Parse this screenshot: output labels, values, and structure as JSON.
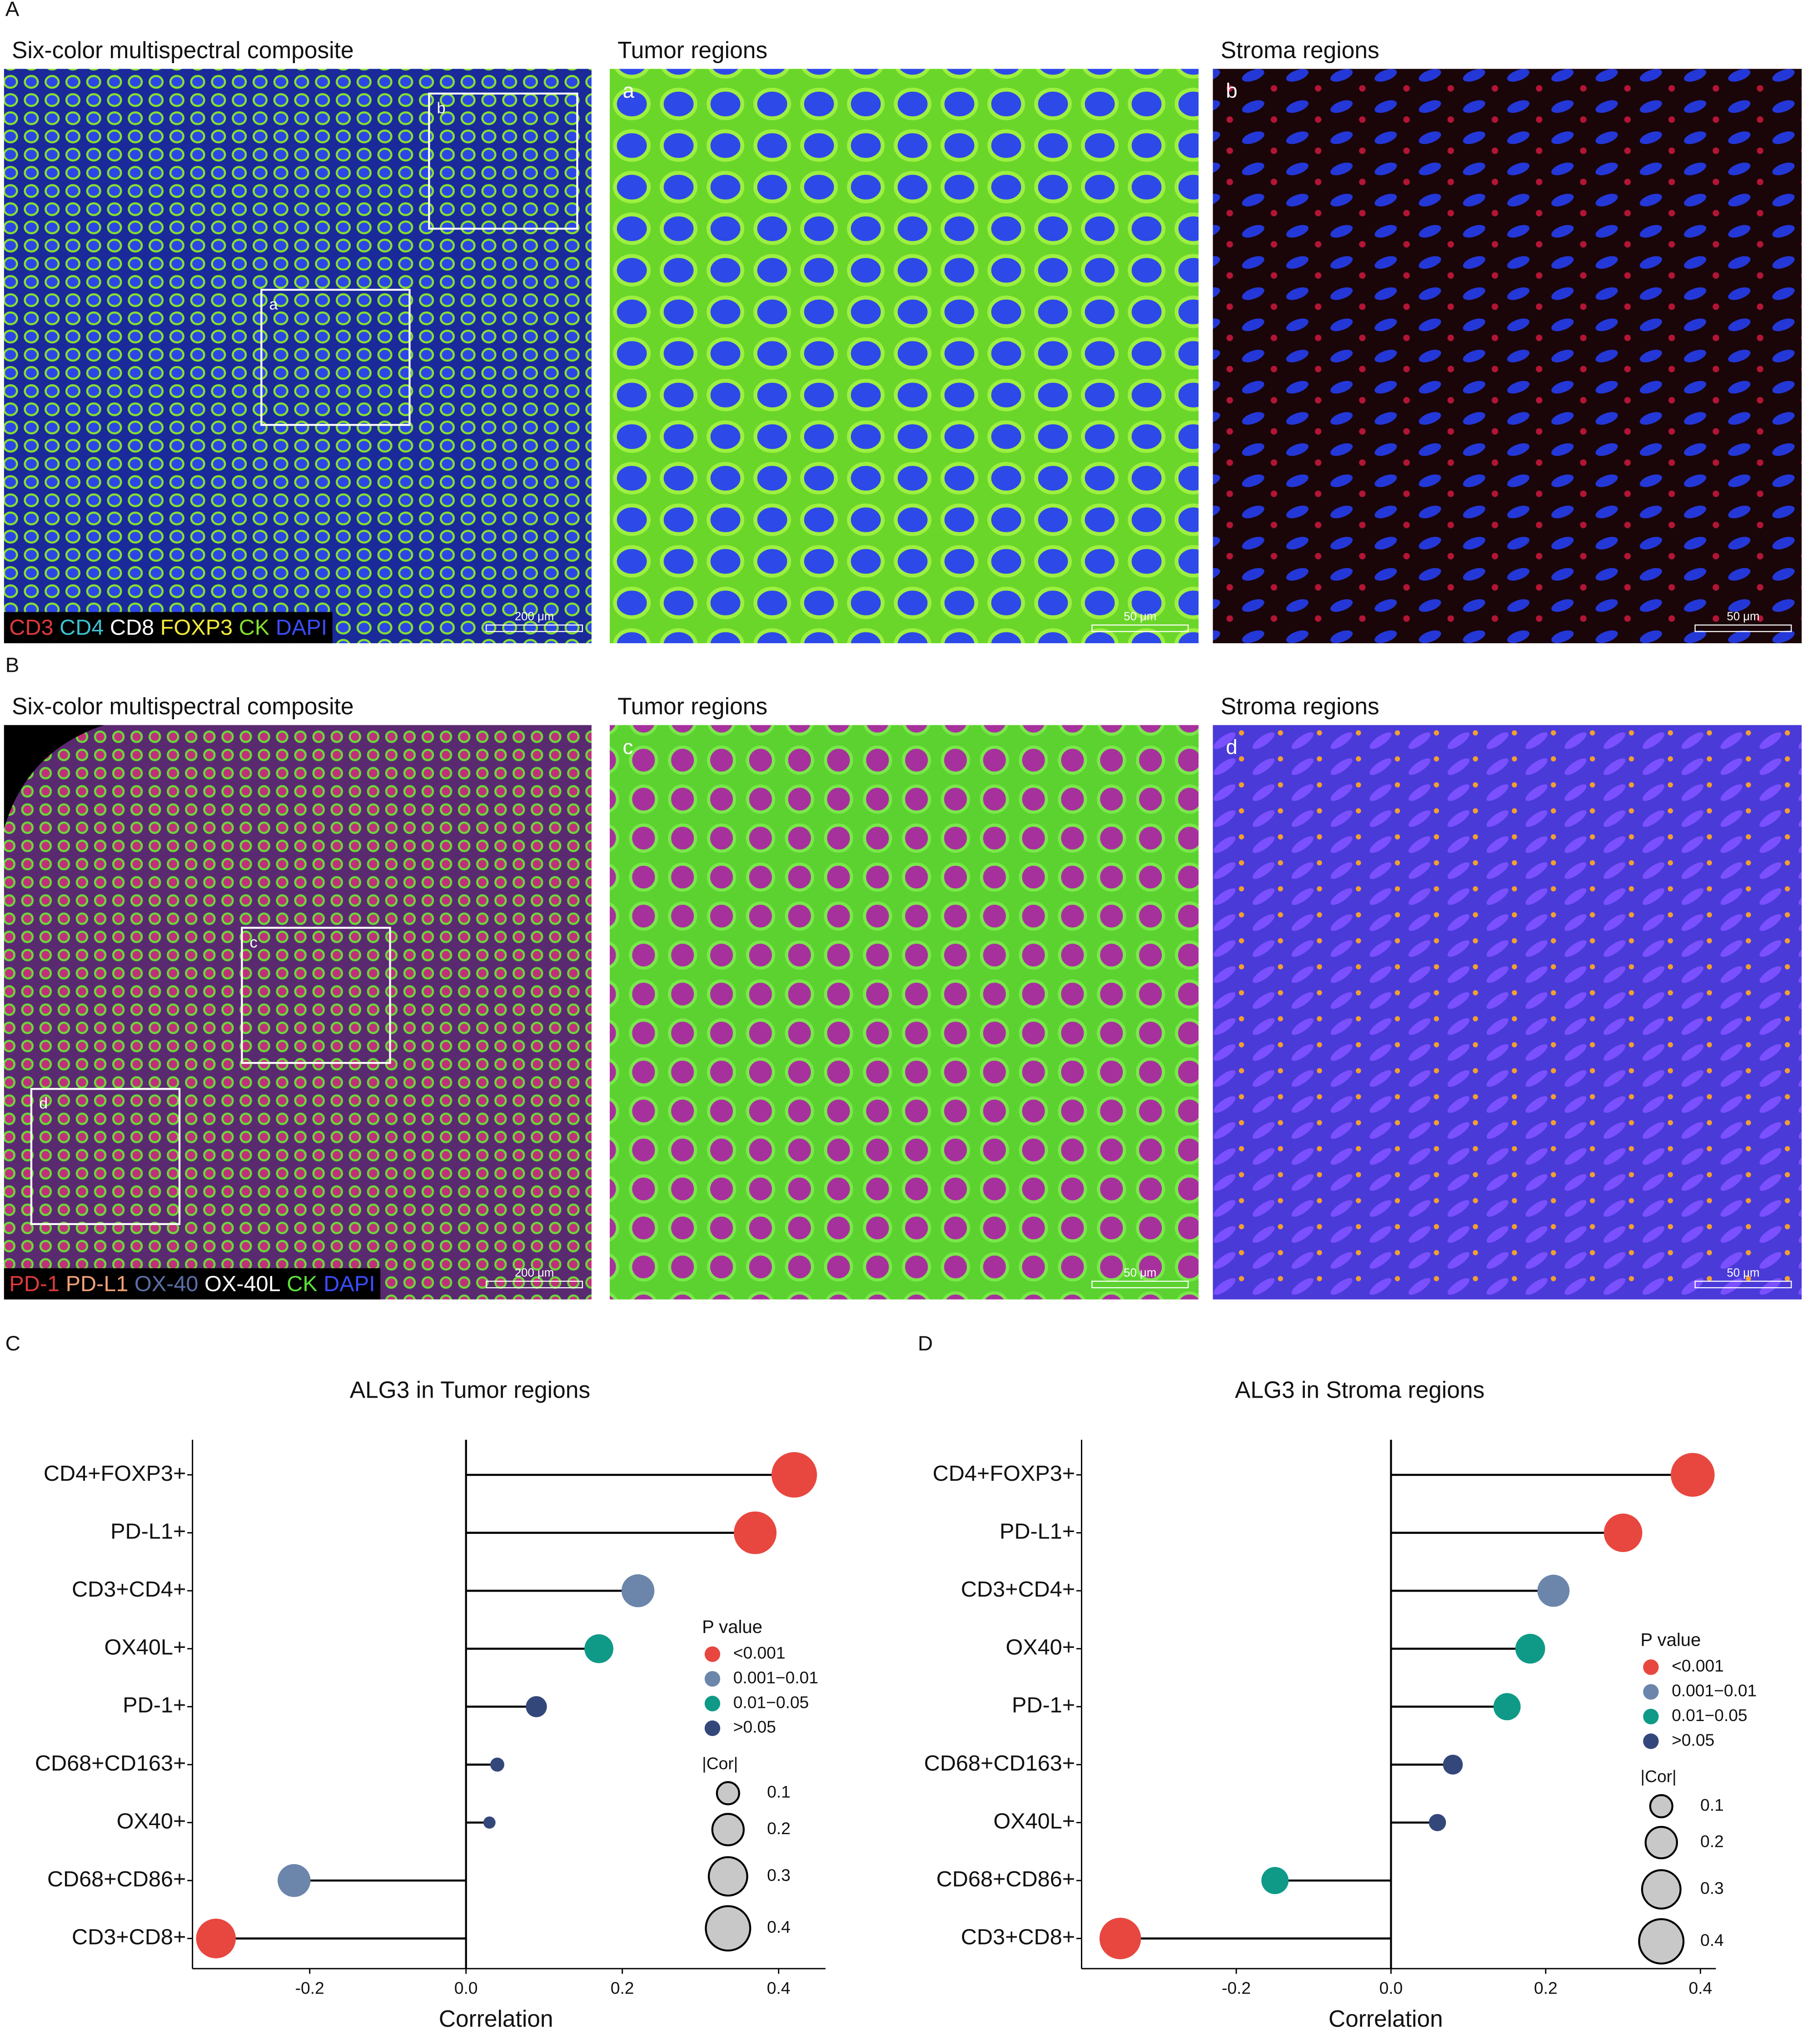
{
  "image_rows": [
    {
      "letter": "A",
      "titles": [
        "Six-color multispectral composite",
        "Tumor regions",
        "Stroma regions"
      ],
      "insets": [
        "b",
        "a"
      ],
      "tags": [
        "a",
        "b"
      ],
      "scale_bars": [
        "200 μm",
        "50 μm",
        "50 μm"
      ],
      "markers": [
        {
          "label": "CD3",
          "color": "#e03a3a"
        },
        {
          "label": "CD4",
          "color": "#3fc1d0"
        },
        {
          "label": "CD8",
          "color": "#ffffff"
        },
        {
          "label": "FOXP3",
          "color": "#f2ea3a"
        },
        {
          "label": "CK",
          "color": "#7fe030"
        },
        {
          "label": "DAPI",
          "color": "#3a4dff"
        }
      ]
    },
    {
      "letter": "B",
      "titles": [
        "Six-color multispectral composite",
        "Tumor regions",
        "Stroma regions"
      ],
      "insets": [
        "c",
        "d"
      ],
      "tags": [
        "c",
        "d"
      ],
      "scale_bars": [
        "200 μm",
        "50 μm",
        "50 μm"
      ],
      "markers": [
        {
          "label": "PD-1",
          "color": "#e03a3a"
        },
        {
          "label": "PD-L1",
          "color": "#f5a27a"
        },
        {
          "label": "OX-40",
          "color": "#5a6fa8"
        },
        {
          "label": "OX-40L",
          "color": "#ffffff"
        },
        {
          "label": "CK",
          "color": "#5ee03a"
        },
        {
          "label": "DAPI",
          "color": "#3a4dff"
        }
      ]
    }
  ],
  "chart_data": [
    {
      "type": "lollipop",
      "letter": "C",
      "title": "ALG3 in Tumor regions",
      "xlabel": "Correlation",
      "categories": [
        "CD4+FOXP3+",
        "PD-L1+",
        "CD3+CD4+",
        "OX40L+",
        "PD-1+",
        "CD68+CD163+",
        "OX40+",
        "CD68+CD86+",
        "CD3+CD8+"
      ],
      "values": [
        0.42,
        0.37,
        0.22,
        0.17,
        0.09,
        0.04,
        0.03,
        -0.22,
        -0.32
      ],
      "colors": [
        "#e8473f",
        "#e8473f",
        "#6c86ab",
        "#0e9a87",
        "#34477a",
        "#34477a",
        "#34477a",
        "#6c86ab",
        "#e8473f"
      ],
      "xlim": [
        -0.35,
        0.46
      ],
      "xticks": [
        -0.2,
        {
          "value": 0,
          "label": "0.0"
        },
        0.2,
        0.4
      ],
      "legend": {
        "color_title": "P value",
        "color_items": [
          {
            "label": "<0.001",
            "color": "#e8473f"
          },
          {
            "label": "0.001−0.01",
            "color": "#6c86ab"
          },
          {
            "label": "0.01−0.05",
            "color": "#0e9a87"
          },
          {
            "label": ">0.05",
            "color": "#34477a"
          }
        ],
        "size_title": "|Cor|",
        "size_values": [
          0.1,
          0.2,
          0.3,
          0.4
        ]
      }
    },
    {
      "type": "lollipop",
      "letter": "D",
      "title": "ALG3 in Stroma regions",
      "xlabel": "Correlation",
      "categories": [
        "CD4+FOXP3+",
        "PD-L1+",
        "CD3+CD4+",
        "OX40+",
        "PD-1+",
        "CD68+CD163+",
        "OX40L+",
        "CD68+CD86+",
        "CD3+CD8+"
      ],
      "values": [
        0.39,
        0.3,
        0.21,
        0.18,
        0.15,
        0.08,
        0.06,
        -0.15,
        -0.35
      ],
      "colors": [
        "#e8473f",
        "#e8473f",
        "#6c86ab",
        "#0e9a87",
        "#0e9a87",
        "#34477a",
        "#34477a",
        "#0e9a87",
        "#e8473f"
      ],
      "xlim": [
        -0.4,
        0.42
      ],
      "xticks": [
        -0.2,
        {
          "value": 0,
          "label": "0.0"
        },
        0.2,
        0.4
      ],
      "legend": {
        "color_title": "P value",
        "color_items": [
          {
            "label": "<0.001",
            "color": "#e8473f"
          },
          {
            "label": "0.001−0.01",
            "color": "#6c86ab"
          },
          {
            "label": "0.01−0.05",
            "color": "#0e9a87"
          },
          {
            "label": ">0.05",
            "color": "#34477a"
          }
        ],
        "size_title": "|Cor|",
        "size_values": [
          0.1,
          0.2,
          0.3,
          0.4
        ]
      }
    }
  ]
}
